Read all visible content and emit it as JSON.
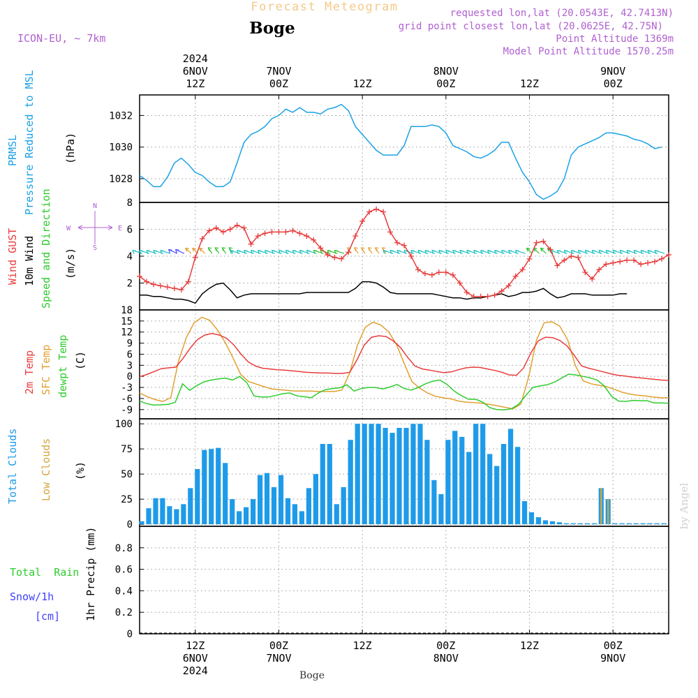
{
  "header": {
    "title": "Forecast Meteogram",
    "location": "Boge",
    "model": "ICON-EU, ~ 7km",
    "requested": "requested lon,lat (20.0543E, 42.7413N)",
    "gridpoint": "grid point closest lon,lat (20.0625E, 42.75N)",
    "point_alt": "Point Altitude 1369m",
    "model_alt": "Model Point Altitude 1570.25m",
    "footer_location": "Boge",
    "watermark": "by Angel"
  },
  "colors": {
    "pressure": "#1ba1e6",
    "gust": "#e83c3c",
    "wind": "#000000",
    "sfc": "#e0a030",
    "dewpt": "#2ecc2e",
    "tcloud": "#1e9be8",
    "lcloud": "#d4a640",
    "snow": "#4040ff",
    "label_purple": "#b060d0",
    "title_orange": "#f5c98a"
  },
  "time_axis": {
    "top": [
      {
        "t": 8,
        "label": "12Z",
        "date": "6NOV",
        "year": "2024"
      },
      {
        "t": 20,
        "label": "00Z",
        "date": "7NOV",
        "year": ""
      },
      {
        "t": 32,
        "label": "12Z",
        "date": "",
        "year": ""
      },
      {
        "t": 44,
        "label": "00Z",
        "date": "8NOV",
        "year": ""
      },
      {
        "t": 56,
        "label": "12Z",
        "date": "",
        "year": ""
      },
      {
        "t": 68,
        "label": "00Z",
        "date": "9NOV",
        "year": ""
      }
    ],
    "bottom": [
      {
        "t": 8,
        "label": "12Z",
        "date": "6NOV",
        "year": "2024"
      },
      {
        "t": 20,
        "label": "00Z",
        "date": "7NOV",
        "year": ""
      },
      {
        "t": 32,
        "label": "12Z",
        "date": "",
        "year": ""
      },
      {
        "t": 44,
        "label": "00Z",
        "date": "8NOV",
        "year": ""
      },
      {
        "t": 56,
        "label": "12Z",
        "date": "",
        "year": ""
      },
      {
        "t": 68,
        "label": "00Z",
        "date": "9NOV",
        "year": ""
      }
    ]
  },
  "panel_labels": {
    "pressure": {
      "line1": "PRMSL",
      "line2": "Pressure Reduced to MSL",
      "unit": "(hPa)"
    },
    "wind": {
      "gust": "Wind GUST",
      "wind": "10m Wind",
      "dir": "Speed and Direction",
      "unit": "(m/s)",
      "compass_n": "N",
      "compass_s": "S",
      "compass_e": "E",
      "compass_w": "W"
    },
    "temp": {
      "t2m": "2m Temp",
      "sfc": "SFC Temp",
      "dew": "dewpt Temp",
      "unit": "(C)"
    },
    "cloud": {
      "total": "Total Clouds",
      "low": "Low Clouds",
      "unit": "(%)"
    },
    "precip": {
      "rain": "Total  Rain",
      "snow": "Snow/1h",
      "snow_unit": "[cm]",
      "axis": "1hr Precip (mm)"
    }
  },
  "chart_data": [
    {
      "type": "line",
      "name": "pressure",
      "ylim": [
        1026.5,
        1033.3
      ],
      "yticks": [
        1028,
        1030,
        1032
      ],
      "series": [
        {
          "name": "PRMSL",
          "values": [
            1028.2,
            1027.9,
            1027.5,
            1027.5,
            1028.1,
            1029.0,
            1029.3,
            1028.9,
            1028.4,
            1028.2,
            1027.8,
            1027.5,
            1027.5,
            1027.8,
            1029.0,
            1030.3,
            1030.8,
            1031.0,
            1031.3,
            1031.8,
            1032.0,
            1032.4,
            1032.2,
            1032.5,
            1032.2,
            1032.2,
            1032.1,
            1032.4,
            1032.5,
            1032.7,
            1032.3,
            1031.3,
            1030.8,
            1030.3,
            1029.8,
            1029.5,
            1029.5,
            1029.5,
            1030.1,
            1031.3,
            1031.3,
            1031.3,
            1031.4,
            1031.3,
            1030.9,
            1030.1,
            1029.9,
            1029.7,
            1029.4,
            1029.3,
            1029.5,
            1029.8,
            1030.3,
            1030.3,
            1029.3,
            1028.4,
            1027.8,
            1027.0,
            1026.7,
            1026.9,
            1027.2,
            1028.0,
            1029.5,
            1030.0,
            1030.2,
            1030.4,
            1030.6,
            1030.9,
            1030.9,
            1030.8,
            1030.7,
            1030.5,
            1030.4,
            1030.2,
            1029.9,
            1030.0
          ]
        }
      ]
    },
    {
      "type": "line",
      "name": "wind",
      "ylim": [
        0,
        8
      ],
      "yticks": [
        2,
        4,
        6,
        8
      ],
      "series": [
        {
          "name": "Wind GUST",
          "values": [
            2.5,
            2.1,
            1.9,
            1.8,
            1.7,
            1.6,
            1.5,
            2.1,
            3.9,
            5.3,
            5.9,
            6.1,
            5.8,
            6.0,
            6.3,
            6.1,
            4.9,
            5.5,
            5.7,
            5.8,
            5.8,
            5.8,
            5.9,
            5.7,
            5.5,
            5.2,
            4.6,
            4.1,
            3.9,
            3.8,
            4.3,
            5.5,
            6.6,
            7.3,
            7.5,
            7.3,
            5.8,
            5.0,
            4.8,
            4.0,
            3.0,
            2.7,
            2.6,
            2.8,
            2.8,
            2.6,
            2.0,
            1.3,
            1.0,
            1.0,
            1.0,
            1.1,
            1.4,
            1.8,
            2.5,
            3.0,
            3.8,
            5.0,
            5.1,
            4.5,
            3.3,
            3.7,
            4.0,
            3.9,
            2.8,
            2.3,
            3.0,
            3.4,
            3.5,
            3.6,
            3.7,
            3.7,
            3.4,
            3.5,
            3.6,
            3.8,
            4.1
          ]
        },
        {
          "name": "10m Wind",
          "values": [
            1.1,
            1.1,
            1.0,
            1.0,
            0.9,
            0.8,
            0.8,
            0.7,
            0.5,
            1.2,
            1.6,
            1.9,
            2.0,
            1.5,
            0.9,
            1.1,
            1.2,
            1.2,
            1.2,
            1.2,
            1.2,
            1.2,
            1.2,
            1.2,
            1.3,
            1.3,
            1.3,
            1.3,
            1.3,
            1.3,
            1.3,
            1.6,
            2.1,
            2.1,
            2.0,
            1.7,
            1.3,
            1.2,
            1.2,
            1.2,
            1.2,
            1.2,
            1.2,
            1.1,
            1.0,
            0.9,
            0.9,
            0.8,
            0.9,
            0.9,
            1.0,
            1.1,
            1.2,
            1.0,
            1.1,
            1.3,
            1.3,
            1.4,
            1.6,
            1.2,
            0.9,
            1.0,
            1.2,
            1.2,
            1.2,
            1.1,
            1.1,
            1.1,
            1.1,
            1.2,
            1.2
          ]
        }
      ],
      "arrow_dirs": [
        {
          "from": 0,
          "to": 5,
          "color": "#20c0c0",
          "angle": -150
        },
        {
          "from": 5,
          "to": 7,
          "color": "#5050ff",
          "angle": -140
        },
        {
          "from": 7,
          "to": 10,
          "color": "#e0a030",
          "angle": -120
        },
        {
          "from": 10,
          "to": 14,
          "color": "#30c030",
          "angle": -110
        },
        {
          "from": 14,
          "to": 26,
          "color": "#20c0c0",
          "angle": -150
        },
        {
          "from": 26,
          "to": 30,
          "color": "#30c030",
          "angle": -150
        },
        {
          "from": 30,
          "to": 36,
          "color": "#e0a030",
          "angle": -110
        },
        {
          "from": 36,
          "to": 56,
          "color": "#20c0c0",
          "angle": -150
        },
        {
          "from": 56,
          "to": 60,
          "color": "#30c030",
          "angle": -120
        },
        {
          "from": 60,
          "to": 76,
          "color": "#20c0c0",
          "angle": -150
        }
      ]
    },
    {
      "type": "line",
      "name": "temperature",
      "ylim": [
        -11.5,
        18
      ],
      "yticks": [
        -9,
        -6,
        -3,
        0,
        3,
        6,
        9,
        12,
        15,
        18
      ],
      "series": [
        {
          "name": "2m Temp",
          "values": [
            -0.1,
            0.5,
            1.3,
            2.1,
            2.3,
            2.5,
            4.9,
            7.7,
            10.0,
            11.2,
            11.6,
            11.2,
            10.3,
            8.5,
            6.0,
            3.9,
            2.8,
            2.2,
            2.0,
            1.8,
            1.7,
            1.5,
            1.3,
            1.1,
            1.0,
            0.9,
            0.9,
            0.8,
            0.8,
            1.1,
            4.5,
            8.5,
            10.6,
            11.0,
            10.8,
            9.6,
            7.8,
            5.1,
            2.8,
            2.0,
            1.7,
            1.3,
            1.0,
            1.2,
            1.8,
            2.3,
            2.5,
            2.4,
            2.0,
            1.6,
            1.1,
            0.4,
            0.3,
            2.3,
            6.4,
            9.6,
            10.6,
            10.5,
            9.7,
            8.2,
            5.6,
            2.8,
            2.2,
            1.7,
            1.2,
            0.7,
            0.3,
            0.1,
            -0.2,
            -0.4,
            -0.6,
            -0.8,
            -1.0,
            -1.1
          ]
        },
        {
          "name": "SFC Temp",
          "values": [
            -4.5,
            -5.5,
            -6.3,
            -6.8,
            -5.8,
            4.1,
            10.5,
            14.5,
            16.0,
            15.2,
            12.6,
            9.2,
            5.0,
            0.5,
            -1.4,
            -2.1,
            -2.8,
            -3.4,
            -3.6,
            -3.8,
            -4.0,
            -4.0,
            -4.0,
            -4.1,
            -4.1,
            -4.1,
            -3.7,
            0.9,
            8.5,
            13.3,
            14.7,
            13.9,
            12.1,
            8.7,
            3.5,
            -1.4,
            -3.2,
            -4.5,
            -5.4,
            -5.8,
            -6.1,
            -6.7,
            -7.0,
            -7.1,
            -7.3,
            -7.6,
            -8.0,
            -8.4,
            -8.8,
            -7.5,
            -0.2,
            9.8,
            14.5,
            14.8,
            13.6,
            10.0,
            3.0,
            -1.2,
            -2.0,
            -2.4,
            -2.8,
            -3.5,
            -4.3,
            -4.8,
            -5.1,
            -5.3,
            -5.6,
            -5.8,
            -5.8
          ]
        },
        {
          "name": "dewpt Temp",
          "values": [
            -6.7,
            -7.4,
            -7.8,
            -7.7,
            -7.6,
            -7.0,
            -2.0,
            -3.8,
            -2.5,
            -1.5,
            -1.0,
            -0.7,
            -0.5,
            -1.0,
            0.0,
            -1.7,
            -5.3,
            -5.6,
            -5.6,
            -5.2,
            -4.7,
            -4.5,
            -5.3,
            -5.5,
            -5.8,
            -4.5,
            -3.6,
            -3.3,
            -3.1,
            -2.3,
            -4.0,
            -3.3,
            -3.0,
            -3.0,
            -3.4,
            -2.9,
            -2.2,
            -3.3,
            -3.7,
            -3.0,
            -2.0,
            -1.3,
            -1.0,
            -2.2,
            -4.0,
            -5.2,
            -6.2,
            -6.2,
            -7.0,
            -8.5,
            -9.0,
            -9.1,
            -8.8,
            -7.6,
            -5.2,
            -3.0,
            -2.6,
            -2.3,
            -1.6,
            -0.5,
            0.6,
            0.4,
            0.0,
            -0.4,
            -1.0,
            -2.6,
            -5.4,
            -6.7,
            -6.8,
            -6.5,
            -6.6,
            -6.6,
            -7.2,
            -7.2,
            -7.3
          ]
        }
      ]
    },
    {
      "type": "bar",
      "name": "clouds",
      "ylim": [
        -2,
        105
      ],
      "yticks": [
        0,
        25,
        50,
        75,
        100
      ],
      "series": [
        {
          "name": "Total Clouds",
          "values": [
            3,
            16,
            26,
            26,
            18,
            15,
            20,
            36,
            55,
            74,
            75,
            76,
            61,
            25,
            13,
            17,
            25,
            49,
            51,
            37,
            49,
            26,
            20,
            13,
            36,
            50,
            80,
            80,
            20,
            37,
            84,
            100,
            100,
            100,
            100,
            96,
            91,
            96,
            96,
            100,
            100,
            84,
            44,
            30,
            84,
            93,
            87,
            72,
            100,
            100,
            70,
            58,
            80,
            95,
            77,
            23,
            12,
            7,
            4,
            3,
            2,
            1,
            1,
            1,
            1,
            1,
            36,
            25,
            1,
            1,
            1,
            1,
            1,
            1,
            1,
            1
          ]
        },
        {
          "name": "Low Clouds",
          "values": [
            0,
            0,
            0,
            0,
            0,
            0,
            0,
            0,
            0,
            0,
            0,
            0,
            0,
            0,
            0,
            0,
            0,
            0,
            0,
            0,
            0,
            0,
            0,
            0,
            0,
            0,
            0,
            0,
            0,
            0,
            0,
            0,
            0,
            0,
            0,
            0,
            0,
            0,
            0,
            0,
            0,
            0,
            0,
            0,
            0,
            0,
            0,
            0,
            0,
            0,
            0,
            0,
            0,
            0,
            0,
            0,
            0,
            0,
            0,
            0,
            0,
            0,
            0,
            0,
            0,
            0,
            36,
            25,
            0,
            0,
            0,
            0,
            0,
            0,
            0,
            0
          ]
        }
      ]
    },
    {
      "type": "bar",
      "name": "precipitation",
      "ylim": [
        0,
        1.0
      ],
      "yticks": [
        0,
        0.2,
        0.4,
        0.6,
        0.8
      ],
      "series": [
        {
          "name": "Total Rain",
          "values": []
        },
        {
          "name": "Snow/1h",
          "values": []
        }
      ]
    }
  ]
}
